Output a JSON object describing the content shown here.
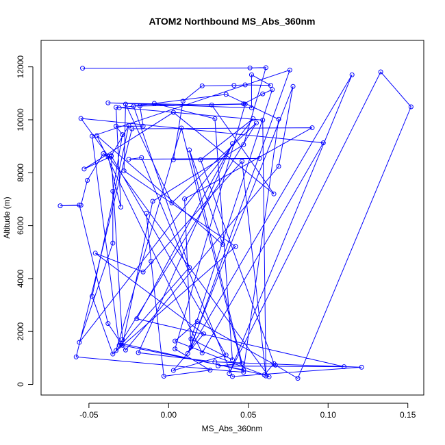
{
  "chart_data": {
    "type": "line",
    "title": "ATOM2 Northbound MS_Abs_360nm",
    "xlabel": "MS_Abs_360nm",
    "ylabel": "Altitude (m)",
    "xlim": [
      -0.08,
      0.16
    ],
    "ylim": [
      -400,
      13000
    ],
    "x_ticks": [
      -0.05,
      0.0,
      0.05,
      0.1,
      0.15
    ],
    "x_tick_labels": [
      "-0.05",
      "0.00",
      "0.05",
      "0.10",
      "0.15"
    ],
    "y_ticks": [
      0,
      2000,
      4000,
      6000,
      8000,
      10000,
      12000
    ],
    "y_tick_labels": [
      "0",
      "2000",
      "4000",
      "6000",
      "8000",
      "10000",
      "12000"
    ],
    "grid": false,
    "legend": "none",
    "series_color": "#0000ff",
    "marker": "open-circle",
    "points": [
      [
        -0.054,
        11950
      ],
      [
        0.051,
        11960
      ],
      [
        0.061,
        11970
      ],
      [
        0.047,
        9060
      ],
      [
        -0.01,
        6920
      ],
      [
        -0.029,
        1480
      ],
      [
        0.047,
        550
      ],
      [
        0.069,
        10020
      ],
      [
        0.036,
        10960
      ],
      [
        -0.031,
        10450
      ],
      [
        -0.009,
        10620
      ],
      [
        0.029,
        10040
      ],
      [
        0.04,
        930
      ],
      [
        0.014,
        1720
      ],
      [
        0.065,
        11140
      ],
      [
        0.059,
        10980
      ],
      [
        0.047,
        10600
      ],
      [
        -0.022,
        10520
      ],
      [
        0.013,
        4420
      ],
      [
        -0.033,
        1280
      ],
      [
        0.008,
        9690
      ],
      [
        0.047,
        460
      ],
      [
        -0.058,
        1040
      ],
      [
        -0.023,
        9660
      ],
      [
        0.09,
        9700
      ],
      [
        0.01,
        7010
      ],
      [
        0.014,
        1410
      ],
      [
        0.076,
        11880
      ],
      [
        -0.048,
        9380
      ],
      [
        -0.031,
        1480
      ],
      [
        0.055,
        9880
      ],
      [
        0.002,
        6860
      ],
      [
        -0.027,
        10590
      ],
      [
        -0.028,
        8070
      ],
      [
        0.042,
        5210
      ],
      [
        -0.035,
        1150
      ],
      [
        -0.048,
        3330
      ],
      [
        -0.025,
        9790
      ],
      [
        -0.036,
        8640
      ],
      [
        0.036,
        1110
      ],
      [
        0.003,
        530
      ],
      [
        0.022,
        1910
      ],
      [
        -0.046,
        4960
      ],
      [
        -0.016,
        4250
      ],
      [
        0.046,
        8430
      ],
      [
        0.061,
        320
      ],
      [
        0.059,
        9990
      ],
      [
        -0.033,
        10470
      ],
      [
        -0.03,
        6700
      ],
      [
        -0.038,
        8620
      ],
      [
        -0.041,
        8720
      ],
      [
        -0.051,
        7710
      ],
      [
        -0.055,
        6770
      ],
      [
        -0.068,
        6750
      ],
      [
        -0.056,
        6780
      ],
      [
        -0.038,
        2300
      ],
      [
        -0.027,
        1300
      ],
      [
        0.069,
        8240
      ],
      [
        0.078,
        11260
      ],
      [
        0.012,
        1170
      ],
      [
        0.115,
        11700
      ],
      [
        0.038,
        410
      ],
      [
        0.133,
        11810
      ],
      [
        0.152,
        10490
      ],
      [
        0.081,
        230
      ],
      [
        0.067,
        730
      ],
      [
        0.018,
        2380
      ],
      [
        0.004,
        1640
      ],
      [
        0.063,
        290
      ],
      [
        -0.055,
        10050
      ],
      [
        0.097,
        9130
      ],
      [
        0.021,
        1190
      ],
      [
        -0.045,
        9400
      ],
      [
        0.034,
        5280
      ],
      [
        0.013,
        8860
      ],
      [
        0.046,
        800
      ],
      [
        0.031,
        700
      ],
      [
        0.11,
        670
      ],
      [
        -0.02,
        2480
      ],
      [
        0.04,
        9100
      ],
      [
        -0.019,
        1200
      ],
      [
        0.029,
        850
      ],
      [
        0.121,
        650
      ],
      [
        0.04,
        300
      ],
      [
        -0.017,
        8570
      ],
      [
        -0.025,
        8510
      ],
      [
        0.057,
        8540
      ],
      [
        0.003,
        8490
      ],
      [
        0.009,
        10700
      ],
      [
        0.021,
        11280
      ],
      [
        0.041,
        11300
      ],
      [
        0.048,
        11320
      ],
      [
        0.064,
        11300
      ],
      [
        0.052,
        11700
      ],
      [
        0.052,
        10450
      ],
      [
        -0.038,
        10640
      ],
      [
        0.027,
        10560
      ],
      [
        0.066,
        7200
      ],
      [
        0.003,
        10280
      ],
      [
        -0.053,
        8140
      ],
      [
        -0.036,
        8620
      ],
      [
        -0.029,
        1700
      ],
      [
        -0.03,
        1550
      ],
      [
        0.06,
        360
      ],
      [
        0.066,
        790
      ],
      [
        0.02,
        8490
      ],
      [
        0.053,
        10040
      ],
      [
        -0.056,
        1590
      ],
      [
        -0.035,
        5340
      ],
      [
        -0.035,
        7300
      ],
      [
        -0.029,
        9440
      ],
      [
        -0.033,
        9760
      ],
      [
        -0.016,
        9760
      ],
      [
        -0.018,
        10520
      ],
      [
        0.048,
        10590
      ],
      [
        0.004,
        1340
      ],
      [
        0.026,
        540
      ],
      [
        -0.003,
        310
      ],
      [
        -0.011,
        4650
      ],
      [
        -0.014,
        6470
      ]
    ]
  }
}
